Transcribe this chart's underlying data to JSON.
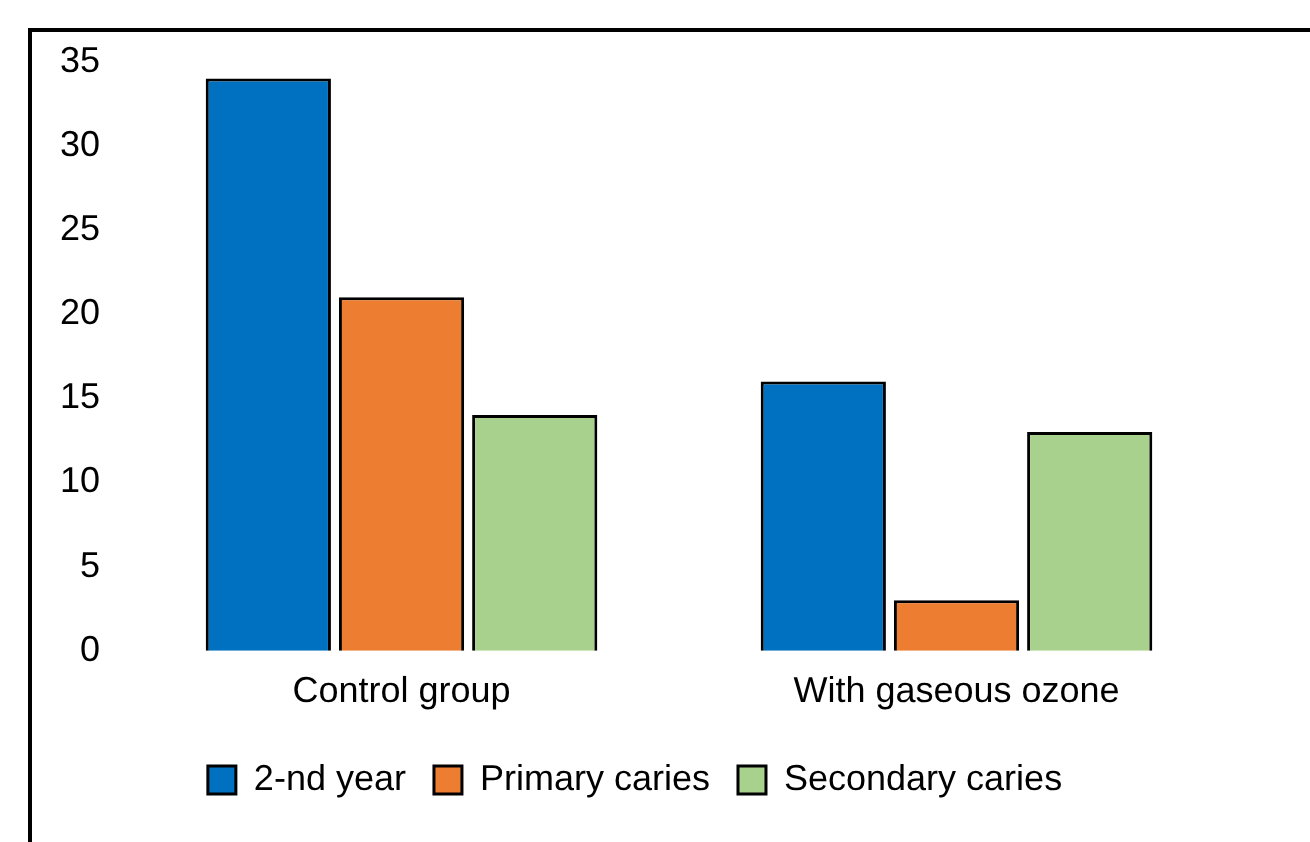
{
  "chart_data": {
    "type": "bar",
    "categories": [
      "Control group",
      "With gaseous ozone"
    ],
    "series": [
      {
        "name": "2-nd year",
        "color": "#0070c0",
        "values": [
          34,
          16
        ]
      },
      {
        "name": "Primary caries",
        "color": "#ed7d31",
        "values": [
          21,
          3
        ]
      },
      {
        "name": "Secondary caries",
        "color": "#a9d18e",
        "values": [
          14,
          13
        ]
      }
    ],
    "ylim": [
      0,
      35
    ],
    "yticks": [
      0,
      5,
      10,
      15,
      20,
      25,
      30,
      35
    ],
    "grid": false,
    "legend": "bottom"
  }
}
